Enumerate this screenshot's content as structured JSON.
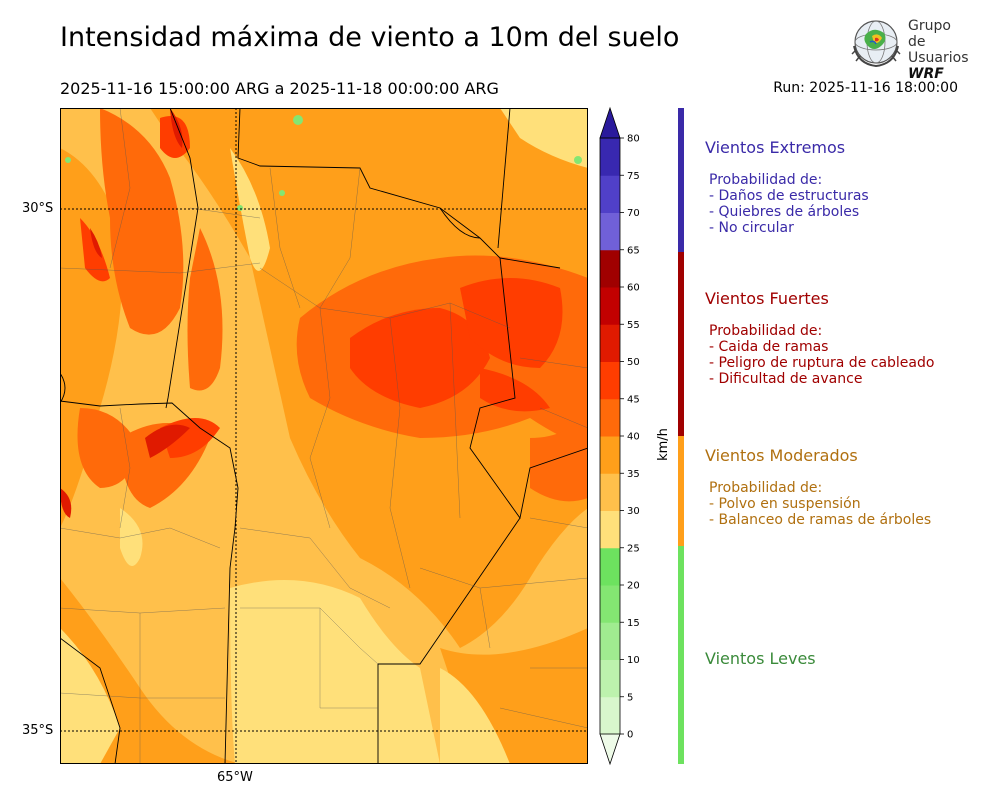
{
  "header": {
    "title": "Intensidad máxima de viento a 10m del suelo",
    "period": "2025-11-16 15:00:00 ARG  a  2025-11-18 00:00:00 ARG",
    "run": "Run: 2025-11-16 18:00:00"
  },
  "logo": {
    "line1": "Grupo de",
    "line2": "Usuarios",
    "line3": "WRF"
  },
  "map": {
    "lat_labels": [
      "30°S",
      "35°S"
    ],
    "lon_labels": [
      "65°W"
    ]
  },
  "colorbar": {
    "unit": "km/h",
    "ticks": [
      "0",
      "5",
      "10",
      "15",
      "20",
      "25",
      "30",
      "35",
      "40",
      "45",
      "50",
      "55",
      "60",
      "65",
      "70",
      "75",
      "80"
    ],
    "colors": [
      "#eefbe8",
      "#d8f7cc",
      "#bdf2ad",
      "#a0ec90",
      "#84e672",
      "#6de25f",
      "#ffe07a",
      "#ffc04b",
      "#ff9f1a",
      "#ff6a0a",
      "#ff3d00",
      "#e01a00",
      "#c20000",
      "#a00000",
      "#7060d8",
      "#5040c8",
      "#3828b0",
      "#2a1a9c"
    ]
  },
  "categories": [
    {
      "title": "Vientos Extremos",
      "color": "#3a2aa8",
      "lines": [
        "Probabilidad de:",
        "- Daños de estructuras",
        "- Quiebres de árboles",
        "- No circular"
      ]
    },
    {
      "title": "Vientos Fuertes",
      "color": "#a00000",
      "lines": [
        "Probabilidad de:",
        "- Caida de ramas",
        "- Peligro de ruptura de cableado",
        "- Dificultad de avance"
      ]
    },
    {
      "title": "Vientos Moderados",
      "color": "#b07010",
      "lines": [
        "Probabilidad de:",
        "- Polvo en suspensión",
        "- Balanceo de ramas de árboles"
      ]
    },
    {
      "title": "Vientos Leves",
      "color": "#3a8a3a",
      "lines": []
    }
  ]
}
